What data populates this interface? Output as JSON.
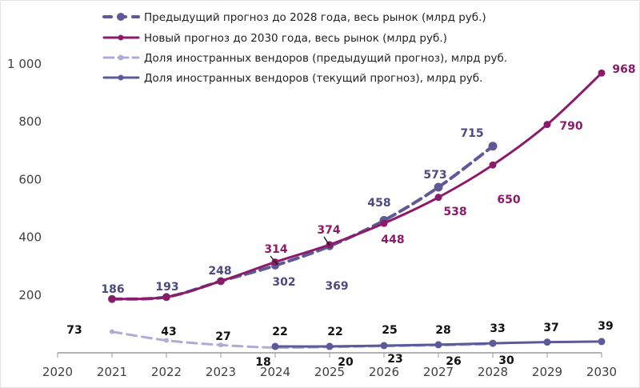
{
  "chart_data": {
    "type": "line",
    "x": [
      2020,
      2021,
      2022,
      2023,
      2024,
      2025,
      2026,
      2027,
      2028,
      2029,
      2030
    ],
    "ylim": [
      0,
      1000
    ],
    "y_ticks": [
      200,
      400,
      600,
      800,
      1000
    ],
    "y_tick_labels": [
      "200",
      "400",
      "600",
      "800",
      "1 000"
    ],
    "x_tick_labels": [
      "2020",
      "2021",
      "2022",
      "2023",
      "2024",
      "2025",
      "2026",
      "2027",
      "2028",
      "2029",
      "2030"
    ],
    "grid": false,
    "legend_position": "top",
    "series": [
      {
        "name": "Предыдущий прогноз до 2028 года, весь рынок (млрд руб.)",
        "color": "#5f5a95",
        "style": "dashed",
        "x": [
          2021,
          2022,
          2023,
          2024,
          2025,
          2026,
          2027,
          2028
        ],
        "values": [
          186,
          193,
          248,
          302,
          369,
          458,
          573,
          715
        ],
        "label_color": "#4b4a82"
      },
      {
        "name": "Новый прогноз до 2030 года, весь рынок (млрд руб.)",
        "color": "#8b1a6b",
        "style": "solid",
        "x": [
          2021,
          2022,
          2023,
          2024,
          2025,
          2026,
          2027,
          2028,
          2029,
          2030
        ],
        "values": [
          186,
          193,
          248,
          314,
          374,
          448,
          538,
          650,
          790,
          968
        ],
        "label_color": "#8b1a6b"
      },
      {
        "name": "Доля иностранных вендоров (предыдущий прогноз), млрд руб.",
        "color": "#aeacd6",
        "style": "dashed",
        "x": [
          2021,
          2022,
          2023,
          2024,
          2025,
          2026,
          2027,
          2028
        ],
        "values": [
          73,
          43,
          27,
          18,
          20,
          23,
          26,
          30
        ],
        "label_color": "#111111"
      },
      {
        "name": "Доля иностранных вендоров (текущий прогноз), млрд руб.",
        "color": "#5b5a99",
        "style": "solid",
        "x": [
          2024,
          2025,
          2026,
          2027,
          2028,
          2029,
          2030
        ],
        "values": [
          22,
          22,
          25,
          28,
          33,
          37,
          39
        ],
        "label_color": "#111111"
      }
    ]
  }
}
